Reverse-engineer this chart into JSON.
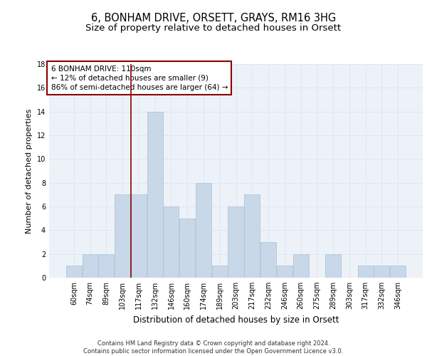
{
  "title1": "6, BONHAM DRIVE, ORSETT, GRAYS, RM16 3HG",
  "title2": "Size of property relative to detached houses in Orsett",
  "xlabel": "Distribution of detached houses by size in Orsett",
  "ylabel": "Number of detached properties",
  "categories": [
    "60sqm",
    "74sqm",
    "89sqm",
    "103sqm",
    "117sqm",
    "132sqm",
    "146sqm",
    "160sqm",
    "174sqm",
    "189sqm",
    "203sqm",
    "217sqm",
    "232sqm",
    "246sqm",
    "260sqm",
    "275sqm",
    "289sqm",
    "303sqm",
    "317sqm",
    "332sqm",
    "346sqm"
  ],
  "values": [
    1,
    2,
    2,
    7,
    7,
    14,
    6,
    5,
    8,
    1,
    6,
    7,
    3,
    1,
    2,
    0,
    2,
    0,
    1,
    1,
    1
  ],
  "bar_color": "#c8d8e8",
  "bar_edge_color": "#a8c0d8",
  "annotation_line_color": "#8b0000",
  "annotation_box_text": "6 BONHAM DRIVE: 110sqm\n← 12% of detached houses are smaller (9)\n86% of semi-detached houses are larger (64) →",
  "annotation_box_color": "#8b0000",
  "ylim": [
    0,
    18
  ],
  "yticks": [
    0,
    2,
    4,
    6,
    8,
    10,
    12,
    14,
    16,
    18
  ],
  "grid_color": "#dce8f0",
  "background_color": "#edf2f8",
  "footer_text": "Contains HM Land Registry data © Crown copyright and database right 2024.\nContains public sector information licensed under the Open Government Licence v3.0.",
  "title1_fontsize": 10.5,
  "title2_fontsize": 9.5,
  "xlabel_fontsize": 8.5,
  "ylabel_fontsize": 8,
  "tick_fontsize": 7,
  "annotation_fontsize": 7.5,
  "footer_fontsize": 6,
  "line_x_index": 3.5
}
